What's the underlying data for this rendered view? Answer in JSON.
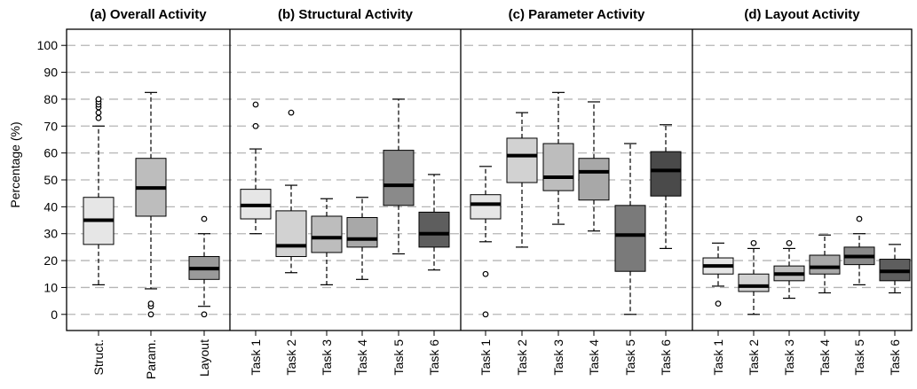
{
  "chart_data": {
    "type": "box",
    "ylabel": "Percentage (%)",
    "y_ticks": [
      0,
      10,
      20,
      30,
      40,
      50,
      60,
      70,
      80,
      90,
      100
    ],
    "ylim": [
      -6,
      106
    ],
    "grid": "horizontal dashed",
    "panels": [
      {
        "title": "(a) Overall Activity",
        "boxes": [
          {
            "label": "Struct.",
            "color": "#e6e6e6",
            "whisker_low": 11,
            "q1": 26,
            "median": 35,
            "q3": 43.5,
            "whisker_high": 70,
            "outliers": [
              73,
              75,
              77,
              78,
              79,
              80
            ]
          },
          {
            "label": "Param.",
            "color": "#bdbdbd",
            "whisker_low": 9.5,
            "q1": 36.5,
            "median": 47,
            "q3": 58,
            "whisker_high": 82.5,
            "outliers": [
              0,
              3,
              4
            ]
          },
          {
            "label": "Layout",
            "color": "#9a9a9a",
            "whisker_low": 3,
            "q1": 13,
            "median": 17,
            "q3": 21.5,
            "whisker_high": 30,
            "outliers": [
              0,
              35.5
            ]
          }
        ]
      },
      {
        "title": "(b) Structural Activity",
        "boxes": [
          {
            "label": "Task 1",
            "color": "#e6e6e6",
            "whisker_low": 30,
            "q1": 35.5,
            "median": 40.5,
            "q3": 46.5,
            "whisker_high": 61.5,
            "outliers": [
              70,
              78
            ]
          },
          {
            "label": "Task 2",
            "color": "#d2d2d2",
            "whisker_low": 15.5,
            "q1": 21.5,
            "median": 25.5,
            "q3": 38.5,
            "whisker_high": 48,
            "outliers": [
              75
            ]
          },
          {
            "label": "Task 3",
            "color": "#bdbdbd",
            "whisker_low": 11,
            "q1": 23,
            "median": 28.5,
            "q3": 36.5,
            "whisker_high": 43,
            "outliers": []
          },
          {
            "label": "Task 4",
            "color": "#a8a8a8",
            "whisker_low": 13,
            "q1": 25,
            "median": 28,
            "q3": 36,
            "whisker_high": 43.5,
            "outliers": []
          },
          {
            "label": "Task 5",
            "color": "#8a8a8a",
            "whisker_low": 22.5,
            "q1": 40.5,
            "median": 48,
            "q3": 61,
            "whisker_high": 80,
            "outliers": []
          },
          {
            "label": "Task 6",
            "color": "#5e5e5e",
            "whisker_low": 16.5,
            "q1": 25,
            "median": 30,
            "q3": 38,
            "whisker_high": 52,
            "outliers": []
          }
        ]
      },
      {
        "title": "(c) Parameter Activity",
        "boxes": [
          {
            "label": "Task 1",
            "color": "#e6e6e6",
            "whisker_low": 27,
            "q1": 35.5,
            "median": 41,
            "q3": 44.5,
            "whisker_high": 55,
            "outliers": [
              0,
              15
            ]
          },
          {
            "label": "Task 2",
            "color": "#d2d2d2",
            "whisker_low": 25,
            "q1": 49,
            "median": 59,
            "q3": 65.5,
            "whisker_high": 75,
            "outliers": []
          },
          {
            "label": "Task 3",
            "color": "#bdbdbd",
            "whisker_low": 33.5,
            "q1": 46,
            "median": 51,
            "q3": 63.5,
            "whisker_high": 82.5,
            "outliers": []
          },
          {
            "label": "Task 4",
            "color": "#a8a8a8",
            "whisker_low": 31,
            "q1": 42.5,
            "median": 53,
            "q3": 58,
            "whisker_high": 79,
            "outliers": []
          },
          {
            "label": "Task 5",
            "color": "#7a7a7a",
            "whisker_low": 0,
            "q1": 16,
            "median": 29.5,
            "q3": 40.5,
            "whisker_high": 63.5,
            "outliers": []
          },
          {
            "label": "Task 6",
            "color": "#4a4a4a",
            "whisker_low": 24.5,
            "q1": 44,
            "median": 53.5,
            "q3": 60.5,
            "whisker_high": 70.5,
            "outliers": []
          }
        ]
      },
      {
        "title": "(d) Layout Activity",
        "boxes": [
          {
            "label": "Task 1",
            "color": "#e6e6e6",
            "whisker_low": 10.5,
            "q1": 15,
            "median": 18,
            "q3": 21,
            "whisker_high": 26.5,
            "outliers": [
              4
            ]
          },
          {
            "label": "Task 2",
            "color": "#d2d2d2",
            "whisker_low": 0,
            "q1": 8.5,
            "median": 10.5,
            "q3": 15,
            "whisker_high": 24.5,
            "outliers": [
              26.5
            ]
          },
          {
            "label": "Task 3",
            "color": "#bdbdbd",
            "whisker_low": 6,
            "q1": 12.5,
            "median": 15,
            "q3": 18,
            "whisker_high": 24.5,
            "outliers": [
              26.5
            ]
          },
          {
            "label": "Task 4",
            "color": "#a8a8a8",
            "whisker_low": 8,
            "q1": 15,
            "median": 17.5,
            "q3": 22,
            "whisker_high": 29.5,
            "outliers": []
          },
          {
            "label": "Task 5",
            "color": "#8a8a8a",
            "whisker_low": 11,
            "q1": 18.5,
            "median": 21.5,
            "q3": 25,
            "whisker_high": 30,
            "outliers": [
              35.5
            ]
          },
          {
            "label": "Task 6",
            "color": "#5e5e5e",
            "whisker_low": 8,
            "q1": 12.5,
            "median": 16,
            "q3": 20.5,
            "whisker_high": 26,
            "outliers": []
          }
        ]
      }
    ]
  }
}
